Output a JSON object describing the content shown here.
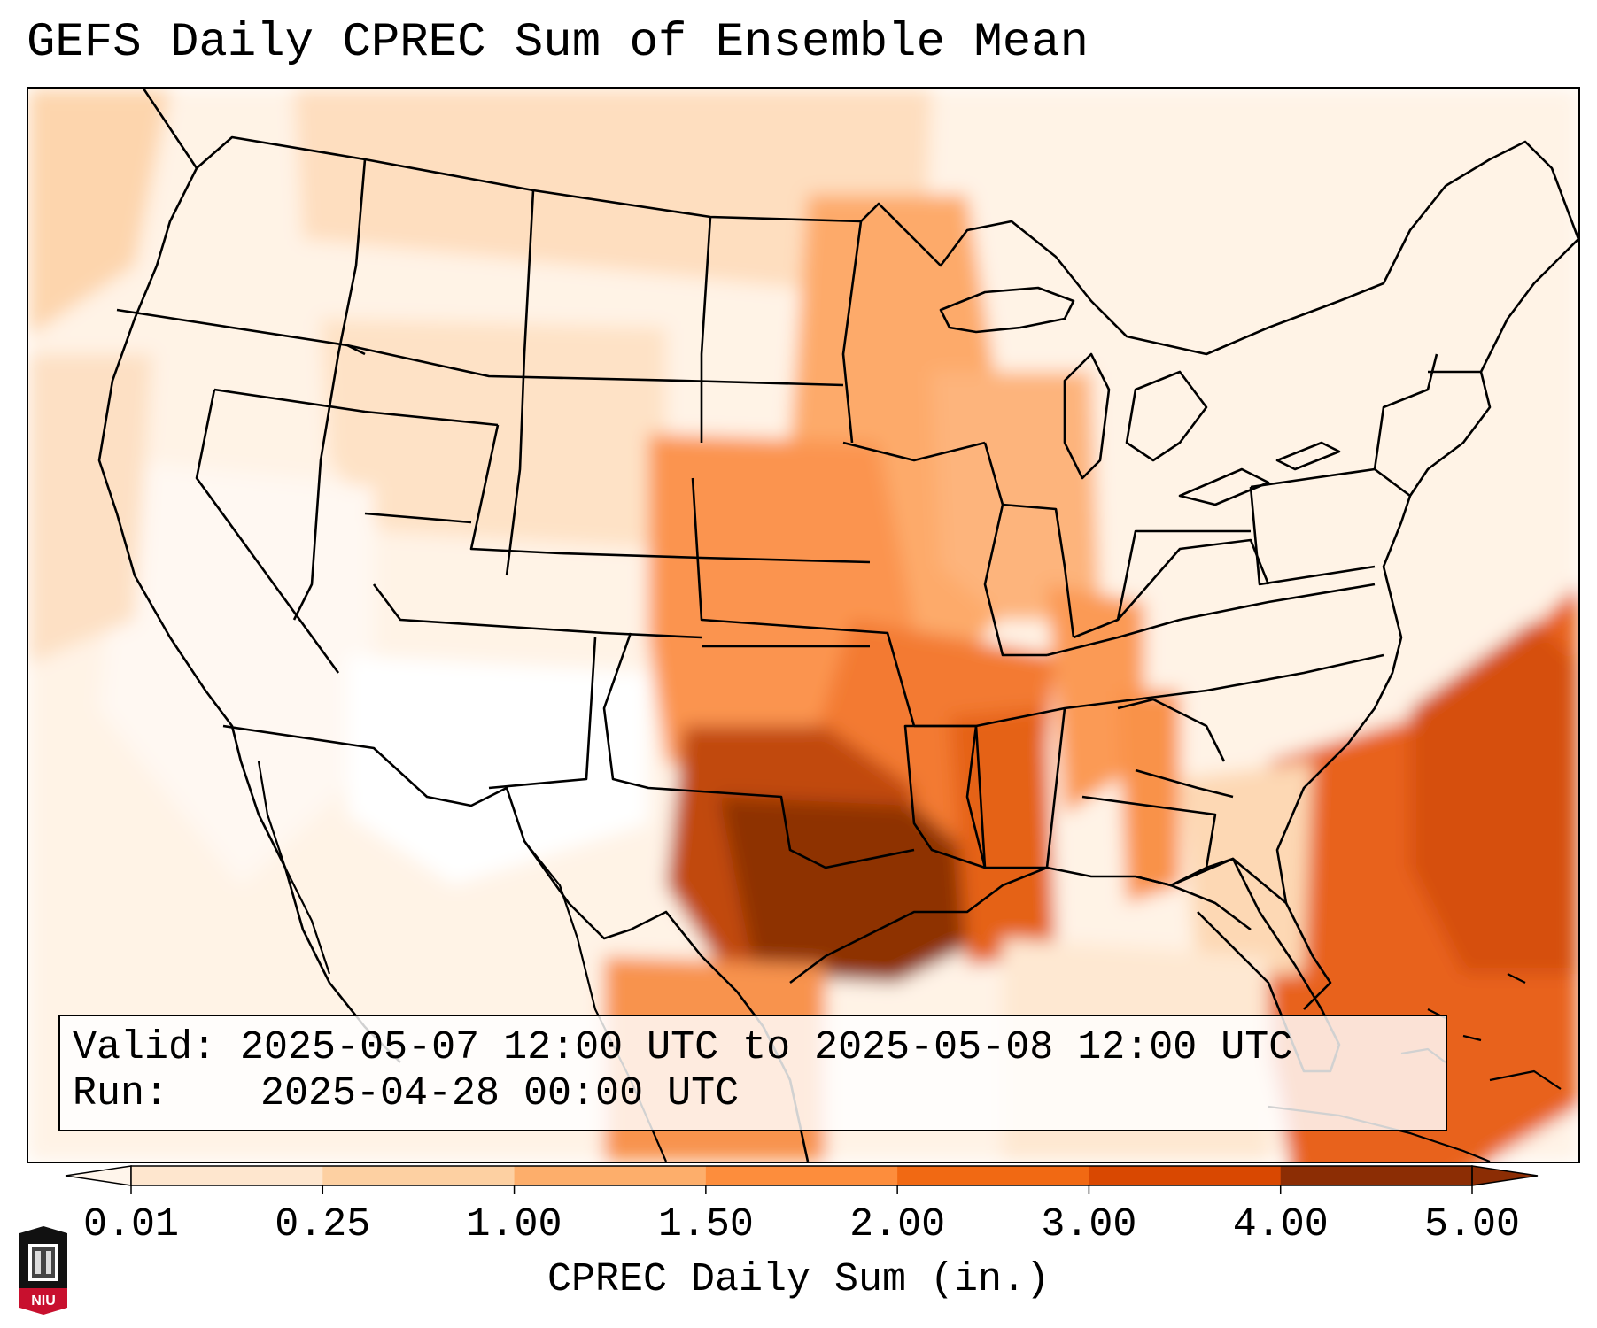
{
  "title": "GEFS Daily CPREC Sum of Ensemble Mean",
  "info": {
    "valid_label": "Valid:",
    "valid_value": "2025-05-07 12:00 UTC to 2025-05-08 12:00 UTC",
    "run_label": "Run:",
    "run_value": "2025-04-28 00:00 UTC"
  },
  "colorbar": {
    "label": "CPREC Daily Sum (in.)",
    "ticks": [
      "0.01",
      "0.25",
      "1.00",
      "1.50",
      "2.00",
      "3.00",
      "4.00",
      "5.00"
    ],
    "colors": [
      "#fff5eb",
      "#fee6ce",
      "#fdd0a2",
      "#fdae6b",
      "#fd8d3c",
      "#f16913",
      "#d94801",
      "#8c2d04"
    ],
    "extend": "both"
  },
  "logo": {
    "text": "NIU"
  },
  "palette": {
    "border": "#000000",
    "low": "#fff5eb",
    "high": "#7f2704"
  }
}
